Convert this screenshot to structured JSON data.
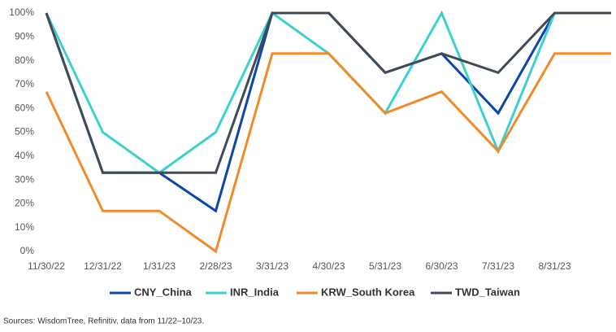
{
  "chart_data": {
    "type": "line",
    "categories": [
      "11/30/22",
      "12/31/22",
      "1/31/23",
      "2/28/23",
      "3/31/23",
      "4/30/23",
      "5/31/23",
      "6/30/23",
      "7/31/23",
      "8/31/23",
      null
    ],
    "series": [
      {
        "name": "CNY_China",
        "color": "#0b46a8",
        "values": [
          100,
          33,
          33,
          17,
          100,
          100,
          75,
          83,
          58,
          100,
          100
        ]
      },
      {
        "name": "INR_India",
        "color": "#3ed0cf",
        "values": [
          100,
          50,
          33,
          50,
          100,
          83,
          58,
          100,
          42,
          100,
          100
        ]
      },
      {
        "name": "KRW_South Korea",
        "color": "#f08b2c",
        "values": [
          67,
          17,
          17,
          0,
          83,
          83,
          58,
          67,
          42,
          83,
          83
        ]
      },
      {
        "name": "TWD_Taiwan",
        "color": "#414b58",
        "values": [
          100,
          33,
          33,
          33,
          100,
          100,
          75,
          83,
          75,
          100,
          100
        ]
      }
    ],
    "ylim": [
      0,
      100
    ],
    "yticks": [
      {
        "value": 0,
        "label": "0%"
      },
      {
        "value": 10,
        "label": "10%"
      },
      {
        "value": 20,
        "label": "20%"
      },
      {
        "value": 30,
        "label": "30%"
      },
      {
        "value": 40,
        "label": "40%"
      },
      {
        "value": 50,
        "label": "50%"
      },
      {
        "value": 60,
        "label": "60%"
      },
      {
        "value": 70,
        "label": "70%"
      },
      {
        "value": 80,
        "label": "80%"
      },
      {
        "value": 90,
        "label": "90%"
      },
      {
        "value": 100,
        "label": "100%"
      }
    ],
    "grid": false,
    "legend": "bottom",
    "source": "Sources: WisdomTree, Refinitiv, data from 11/22–10/23."
  }
}
